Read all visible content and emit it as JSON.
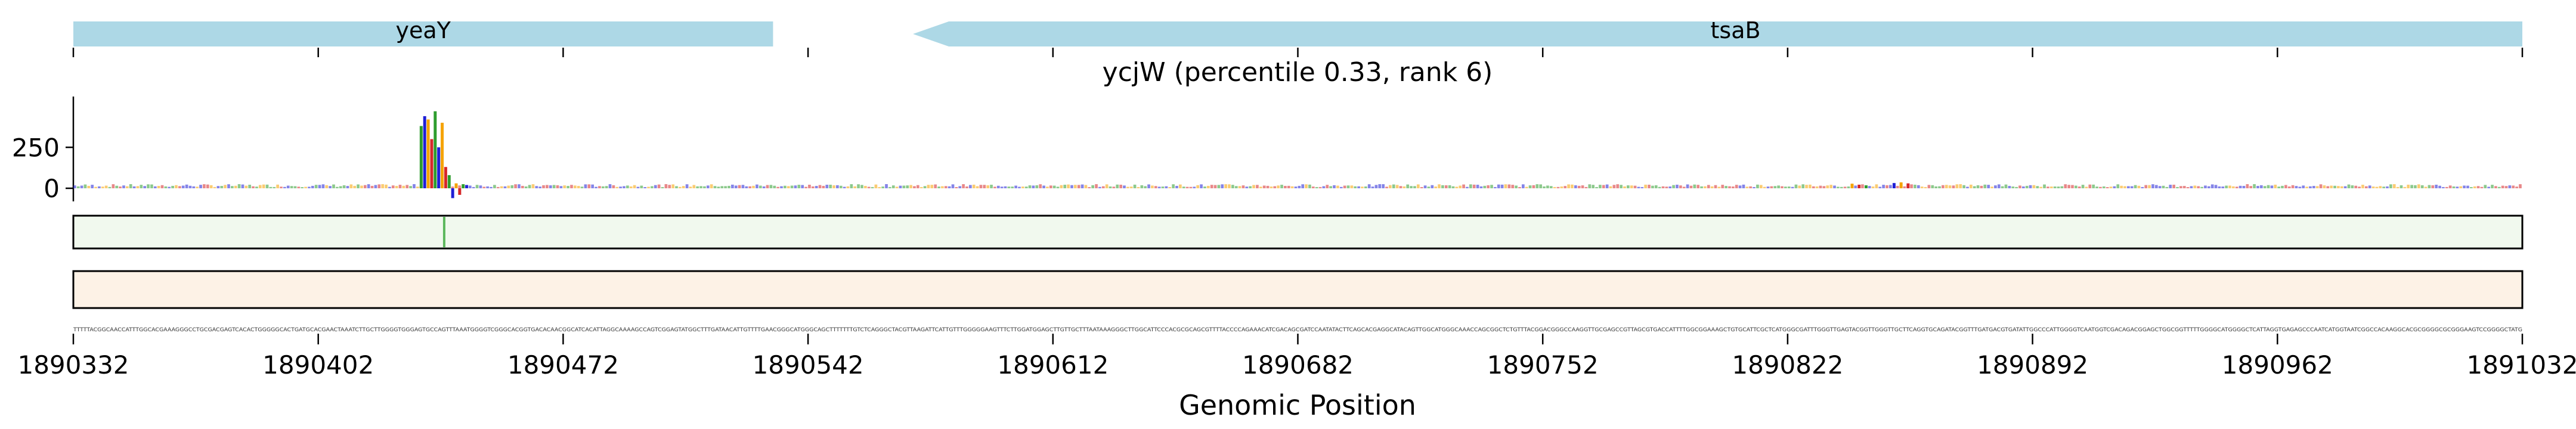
{
  "chart_data": {
    "type": "genome-track",
    "title": "ycjW (percentile 0.33, rank 6)",
    "xlabel": "Genomic Position",
    "xlim": [
      1890332,
      1891032
    ],
    "x_ticks": [
      1890332,
      1890402,
      1890472,
      1890542,
      1890612,
      1890682,
      1890752,
      1890822,
      1890892,
      1890962,
      1891032
    ],
    "x_tick_labels": [
      "1890332",
      "1890402",
      "1890472",
      "1890542",
      "1890612",
      "1890682",
      "1890752",
      "1890822",
      "1890892",
      "1890962",
      "1891032"
    ],
    "genes": [
      {
        "name": "yeaY",
        "start": 1890332,
        "end": 1890532,
        "strand": "+"
      },
      {
        "name": "tsaB",
        "start": 1890572,
        "end": 1891032,
        "strand": "-"
      }
    ],
    "logo_track": {
      "yticks": [
        0,
        250
      ],
      "ylim": [
        -80,
        560
      ],
      "peaks": [
        {
          "pos": 1890431,
          "value": 380
        },
        {
          "pos": 1890432,
          "value": 440
        },
        {
          "pos": 1890433,
          "value": 420
        },
        {
          "pos": 1890434,
          "value": 300
        },
        {
          "pos": 1890435,
          "value": 470
        },
        {
          "pos": 1890436,
          "value": 250
        },
        {
          "pos": 1890437,
          "value": 400
        },
        {
          "pos": 1890438,
          "value": 130
        },
        {
          "pos": 1890439,
          "value": 80
        },
        {
          "pos": 1890440,
          "value": -60
        },
        {
          "pos": 1890441,
          "value": 30
        },
        {
          "pos": 1890442,
          "value": -40
        },
        {
          "pos": 1890443,
          "value": 25
        },
        {
          "pos": 1890444,
          "value": 20
        },
        {
          "pos": 1890840,
          "value": 28
        },
        {
          "pos": 1890842,
          "value": 22
        },
        {
          "pos": 1890844,
          "value": 18
        },
        {
          "pos": 1890852,
          "value": 32
        },
        {
          "pos": 1890854,
          "value": 36
        },
        {
          "pos": 1890856,
          "value": 30
        }
      ]
    },
    "signal_tracks": [
      {
        "color": "green",
        "peaks": [
          {
            "pos": 1890438,
            "value": 1.0
          }
        ]
      },
      {
        "color": "orange",
        "peaks": []
      }
    ],
    "sequence": "TTTTTACGGCAACCATTTGGCACGAAAGGGCCTGCGACGAGTCACACTGGGGGCACTGATGCACGAACTAAATCTTGCTTGGGGTGGGAGTGCCAGTTTAAATGGGGTCGGGCACGGTGACACAACGGCATCACATTAGGCAAAAGCCAGTCGGAGTATGGCTTTGATAACATTGTTTTGAACGGGCATGGGCAGCTTTTTTTGTCTCAGGGCTACGTTAAGATTCATTGTTTGGGGGAAGTTTCTTGGATGGAGCTTGTTGCTTTAATAAAGGGCTTGGCATTCCCACGCGCAGCGTTTTACCCCAGAAACATCGACAGCGATCCAATATACTTCAGCACGAGGCATACAGTTGGCATGGGCAAACCAGCGGCTCTGTTTACGGACGGGCCAAGGTTGCGAGCCGTTAGCGTGACCATTTTGGCGGAAAGCTGTGCATTCGCTCATGGGCGATTTGGGTTGAGTACGGTTGGGTTGCTTCAGGTGCAGATACGGTTTGATGACGTGATATTGGCCCATTGGGGTCAATGGTCGACAGACGGAGCTGGCGGTTTTTGGGGCATGGGGCTCATTAGGTGAGAGCCCAATCATGGTAATCGGCCACAAGGCACGCGGGGCGCGGGAAGTCCGGGGCTATG"
  }
}
